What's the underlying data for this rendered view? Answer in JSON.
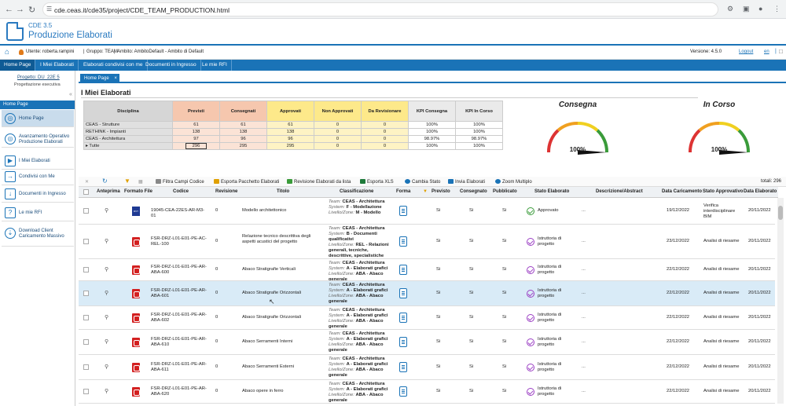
{
  "browser": {
    "url": "cde.ceas.it/cde35/project/CDE_TEAM_PRODUCTION.html"
  },
  "app": {
    "version_label": "CDE 3.5",
    "title": "Produzione Elaborati"
  },
  "userbar": {
    "user": "Utente: roberta.rampini",
    "group": "Gruppo: TEAM",
    "ambito": "Ambito: AmbitoDefault - Ambito di Default",
    "version": "Versione: 4.5.0",
    "logout": "Logout",
    "lang": "en"
  },
  "topnav": [
    "Home Page",
    "I Miei Elaborati",
    "Elaborati condivisi con me",
    "Documenti in Ingresso",
    "Le mie RFI"
  ],
  "project": {
    "title": "Progetto: DU_22E 5",
    "subtitle": "Progettazione esecutiva"
  },
  "sidebar": {
    "header": "Home Page",
    "items": [
      "Home Page",
      "Avanzamento Operativo Produzione Elaborati",
      "I Miei Elaborati",
      "Condivisi con Me",
      "Documenti in Ingresso",
      "Le mie RFI",
      "Download Client Caricamento Massivo"
    ]
  },
  "tab": {
    "label": "Home Page"
  },
  "panel": {
    "title": "I Miei Elaborati"
  },
  "summary": {
    "headers": [
      "Disciplina",
      "Previsti",
      "Consegnati",
      "Approvati",
      "Non Approvati",
      "Da Revisionare",
      "KPI Consegna",
      "KPI In Corso"
    ],
    "rows": [
      [
        "CEAS - Strutture",
        "61",
        "61",
        "61",
        "0",
        "0",
        "100%",
        "100%"
      ],
      [
        "RETHINK - Impianti",
        "138",
        "138",
        "138",
        "0",
        "0",
        "100%",
        "100%"
      ],
      [
        "CEAS - Architettura",
        "97",
        "96",
        "96",
        "0",
        "0",
        "98.97%",
        "98.97%"
      ],
      [
        "Tutte",
        "296",
        "295",
        "295",
        "0",
        "0",
        "100%",
        "100%"
      ]
    ]
  },
  "gauges": [
    {
      "title": "Consegna",
      "value": "100%",
      "fraction": 1.0
    },
    {
      "title": "In Corso",
      "value": "100%",
      "fraction": 1.0
    }
  ],
  "toolbar": {
    "items": [
      "Filtra Campi Codice",
      "Esporta Pacchetto Elaborati",
      "Revisione Elaborati da lista",
      "Esporta XLS",
      "Cambia Stato",
      "Invia Elaborati",
      "Zoom Multiplo"
    ],
    "total": "totali: 296"
  },
  "grid": {
    "headers": [
      "Anteprima",
      "Formato File",
      "Codice",
      "Revisione",
      "Titolo",
      "Classificazione",
      "Forma",
      "Previsto",
      "Consegnato",
      "Pubblicato",
      "Stato Elaborato",
      "Descrizione/Abstract",
      "Data Caricamento",
      "Stato Approvativo",
      "Data Elaborato"
    ],
    "rows": [
      {
        "fmt": "RVT",
        "code": "19045-CEA-22ES-AR-M3-01",
        "rev": "0",
        "title": "Modello architettonico",
        "team": "CEAS - Architettura",
        "system": "F - Modellazione",
        "level": "M - Modello",
        "prev": "Si",
        "cons": "Si",
        "pub": "Si",
        "state": "Approvato",
        "desc": "...",
        "date": "19/12/2022",
        "appr": "Verifica interdisciplinare BIM",
        "del": "20/11/2022"
      },
      {
        "fmt": "PDF",
        "code": "FSR-DRZ-L01-E01-PE-AC-REL-100",
        "rev": "0",
        "title": "Relazione tecnico descrittiva degli aspetti acustici del progetto",
        "team": "CEAS - Architettura",
        "system": "B - Documenti qualificativi",
        "level": "REL - Relazioni generali, tecniche, descrittive, specialistiche",
        "prev": "Si",
        "cons": "Si",
        "pub": "Si",
        "state": "Istruttoria di progetto",
        "desc": "...",
        "date": "23/12/2022",
        "appr": "Analisi di riesame",
        "del": "20/11/2022"
      },
      {
        "fmt": "PDF",
        "code": "FSR-DRZ-L01-E01-PE-AR-ABA-600",
        "rev": "0",
        "title": "Abaco Stratigrafie Verticali",
        "team": "CEAS - Architettura",
        "system": "A - Elaborati grafici",
        "level": "ABA - Abaco generale",
        "prev": "Si",
        "cons": "Si",
        "pub": "Si",
        "state": "Istruttoria di progetto",
        "desc": "...",
        "date": "22/12/2022",
        "appr": "Analisi di riesame",
        "del": "20/11/2022"
      },
      {
        "fmt": "PDF",
        "code": "FSR-DRZ-L01-E01-PE-AR-ABA-601",
        "rev": "0",
        "title": "Abaco Stratigrafie Orizzontali",
        "team": "CEAS - Architettura",
        "system": "A - Elaborati grafici",
        "level": "ABA - Abaco generale",
        "prev": "Si",
        "cons": "Si",
        "pub": "Si",
        "state": "Istruttoria di progetto",
        "desc": "...",
        "date": "22/12/2022",
        "appr": "Analisi di riesame",
        "del": "20/11/2022"
      },
      {
        "fmt": "PDF",
        "code": "FSR-DRZ-L01-E01-PE-AR-ABA-602",
        "rev": "0",
        "title": "Abaco Stratigrafie Orizzontali",
        "team": "CEAS - Architettura",
        "system": "A - Elaborati grafici",
        "level": "ABA - Abaco generale",
        "prev": "Si",
        "cons": "Si",
        "pub": "Si",
        "state": "Istruttoria di progetto",
        "desc": "...",
        "date": "22/12/2022",
        "appr": "Analisi di riesame",
        "del": "20/11/2022"
      },
      {
        "fmt": "PDF",
        "code": "FSR-DRZ-L01-E01-PE-AR-ABA-610",
        "rev": "0",
        "title": "Abaco Serramenti Interni",
        "team": "CEAS - Architettura",
        "system": "A - Elaborati grafici",
        "level": "ABA - Abaco generale",
        "prev": "Si",
        "cons": "Si",
        "pub": "Si",
        "state": "Istruttoria di progetto",
        "desc": "...",
        "date": "22/12/2022",
        "appr": "Analisi di riesame",
        "del": "20/11/2022"
      },
      {
        "fmt": "PDF",
        "code": "FSR-DRZ-L01-E01-PE-AR-ABA-611",
        "rev": "0",
        "title": "Abaco Serramenti Esterni",
        "team": "CEAS - Architettura",
        "system": "A - Elaborati grafici",
        "level": "ABA - Abaco generale",
        "prev": "Si",
        "cons": "Si",
        "pub": "Si",
        "state": "Istruttoria di progetto",
        "desc": "...",
        "date": "22/12/2022",
        "appr": "Analisi di riesame",
        "del": "20/11/2022"
      },
      {
        "fmt": "PDF",
        "code": "FSR-DRZ-L01-E01-PE-AR-ABA-620",
        "rev": "0",
        "title": "Abaco opere in ferro",
        "team": "CEAS - Architettura",
        "system": "A - Elaborati grafici",
        "level": "ABA - Abaco generale",
        "prev": "Si",
        "cons": "Si",
        "pub": "Si",
        "state": "Istruttoria di progetto",
        "desc": "...",
        "date": "22/12/2022",
        "appr": "Analisi di riesame",
        "del": "20/11/2022"
      }
    ]
  },
  "labels": {
    "team": "Team:",
    "system": "System:",
    "level": "Livello/Zone:"
  }
}
